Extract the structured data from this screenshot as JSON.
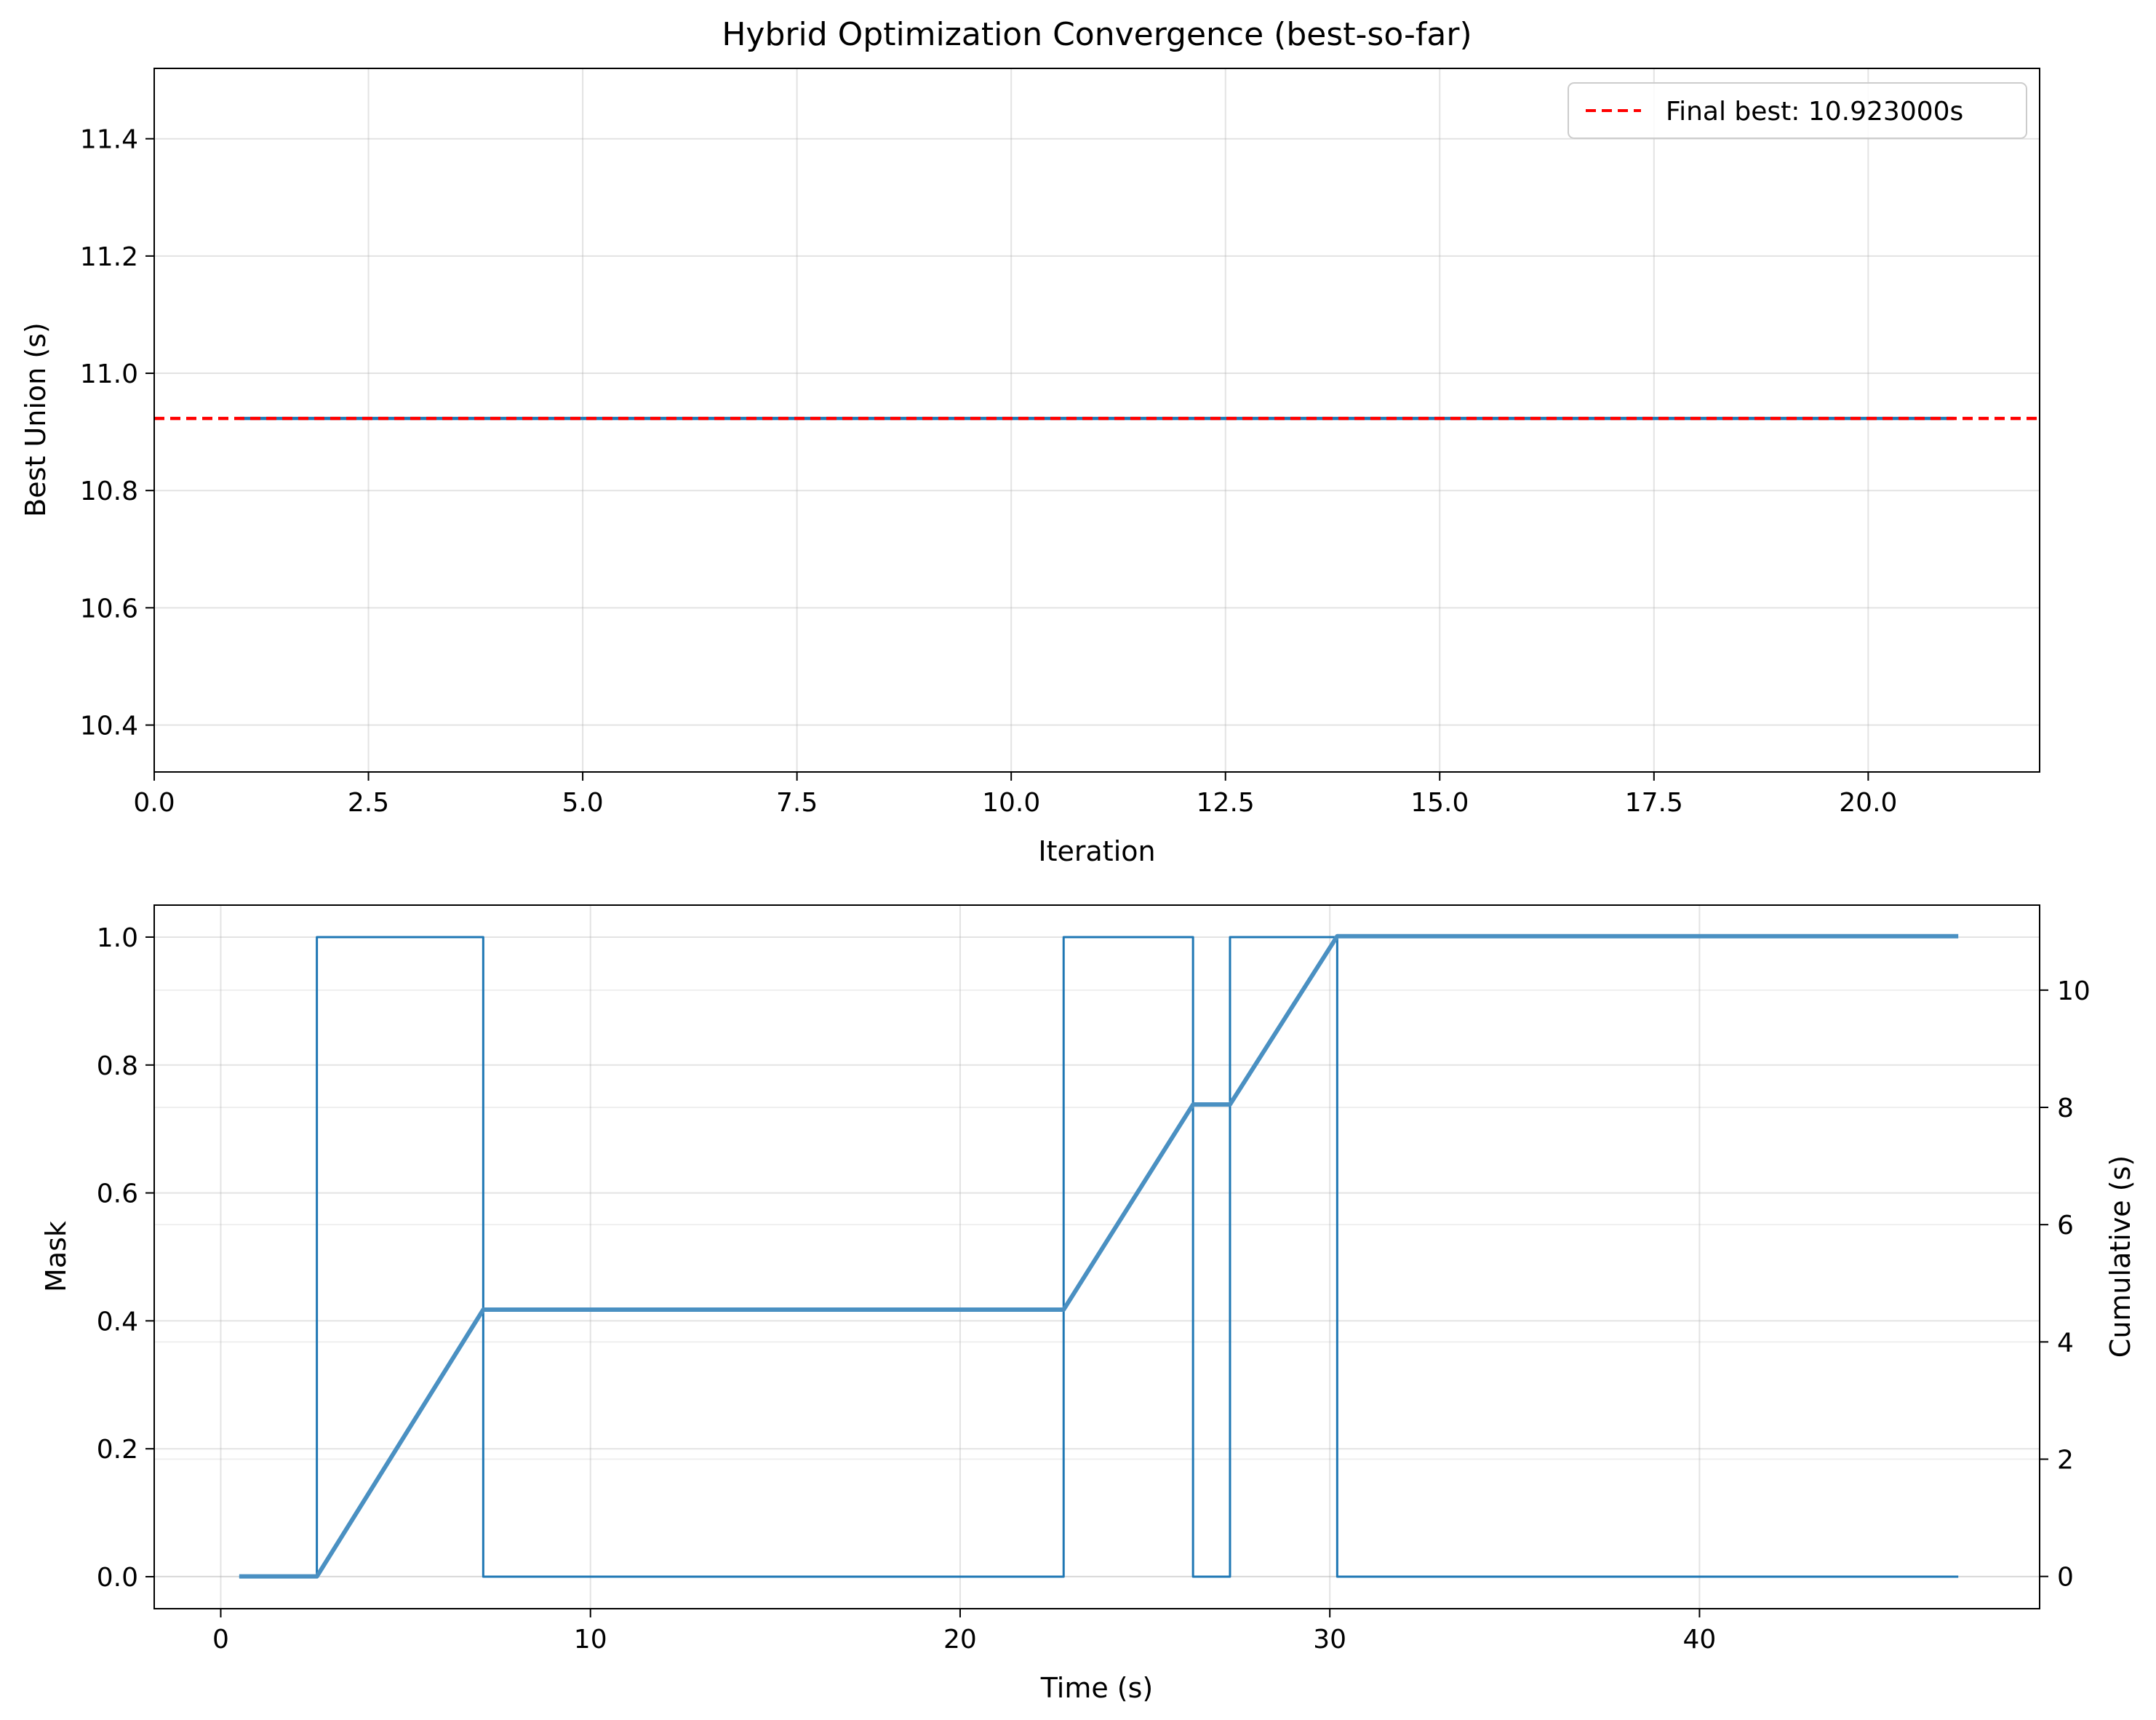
{
  "chart_data": [
    {
      "type": "line",
      "title": "Hybrid Optimization Convergence (best-so-far)",
      "xlabel": "Iteration",
      "ylabel": "Best Union (s)",
      "xlim": [
        0,
        22
      ],
      "ylim": [
        10.32,
        11.52
      ],
      "xticks": [
        0,
        2.5,
        5,
        7.5,
        10,
        12.5,
        15,
        17.5,
        20
      ],
      "xtick_labels": [
        "0.0",
        "2.5",
        "5.0",
        "7.5",
        "10.0",
        "12.5",
        "15.0",
        "17.5",
        "20.0"
      ],
      "yticks": [
        10.4,
        10.6,
        10.8,
        11.0,
        11.2,
        11.4
      ],
      "ytick_labels": [
        "10.4",
        "10.6",
        "10.8",
        "11.0",
        "11.2",
        "11.4"
      ],
      "grid": true,
      "legend_position": "top-right",
      "series": [
        {
          "color": "#1f77b4",
          "x": [
            1,
            2,
            3,
            4,
            5,
            6,
            7,
            8,
            9,
            10,
            11,
            12,
            13,
            14,
            15,
            16,
            17,
            18,
            19,
            20,
            21
          ],
          "values": [
            10.923,
            10.923,
            10.923,
            10.923,
            10.923,
            10.923,
            10.923,
            10.923,
            10.923,
            10.923,
            10.923,
            10.923,
            10.923,
            10.923,
            10.923,
            10.923,
            10.923,
            10.923,
            10.923,
            10.923,
            10.923
          ]
        }
      ],
      "reference_line": {
        "name": "Final best: 10.923000s",
        "value": 10.923,
        "color": "#ff0000",
        "style": "dashed"
      }
    },
    {
      "type": "line",
      "xlabel": "Time (s)",
      "ylabel": "Mask",
      "y2label": "Cumulative (s)",
      "xlim": [
        -1.8,
        49.2
      ],
      "ylim": [
        -0.05,
        1.05
      ],
      "y2lim": [
        -0.55,
        11.45
      ],
      "xticks": [
        0,
        10,
        20,
        30,
        40
      ],
      "xtick_labels": [
        "0",
        "10",
        "20",
        "30",
        "40"
      ],
      "yticks": [
        0.0,
        0.2,
        0.4,
        0.6,
        0.8,
        1.0
      ],
      "ytick_labels": [
        "0.0",
        "0.2",
        "0.4",
        "0.6",
        "0.8",
        "1.0"
      ],
      "y2ticks": [
        0,
        2,
        4,
        6,
        8,
        10
      ],
      "y2tick_labels": [
        "0",
        "2",
        "4",
        "6",
        "8",
        "10"
      ],
      "grid": true,
      "series": [
        {
          "axis": "left",
          "color": "#1f77b4",
          "step": true,
          "x": [
            0.5,
            2.6,
            2.6,
            7.1,
            7.1,
            22.8,
            22.8,
            26.3,
            26.3,
            27.3,
            27.3,
            30.2,
            30.2,
            47.0
          ],
          "values": [
            0,
            0,
            1,
            1,
            0,
            0,
            1,
            1,
            0,
            0,
            1,
            1,
            0,
            0
          ]
        },
        {
          "axis": "right",
          "color": "#4a90c2",
          "x": [
            0.5,
            2.6,
            7.1,
            22.8,
            26.3,
            27.3,
            30.2,
            47.0
          ],
          "values": [
            0,
            0,
            4.55,
            4.55,
            8.05,
            8.05,
            10.92,
            10.92
          ]
        }
      ]
    }
  ]
}
